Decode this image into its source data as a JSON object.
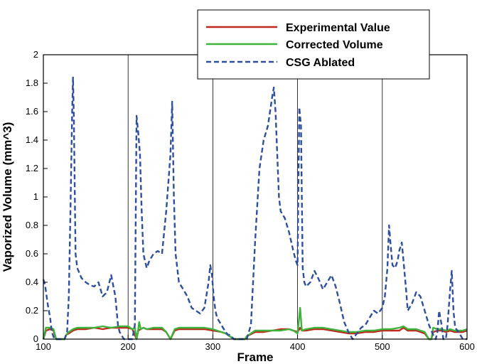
{
  "chart_data": {
    "type": "line",
    "title": "",
    "xlabel": "Frame",
    "ylabel": "Vaporized Volume (mm^3)",
    "xlim": [
      100,
      600
    ],
    "ylim": [
      0,
      2
    ],
    "grid": true,
    "legend_position": "top-right",
    "x_ticks": [
      100,
      200,
      300,
      400,
      500,
      600
    ],
    "y_ticks": [
      0,
      0.2,
      0.4,
      0.6,
      0.8,
      1,
      1.2,
      1.4,
      1.6,
      1.8,
      2
    ],
    "series": [
      {
        "name": "Experimental Value",
        "color": "#c0281e",
        "dash": "solid",
        "x": [
          100,
          103,
          108,
          112,
          115,
          120,
          125,
          127,
          130,
          135,
          140,
          150,
          160,
          170,
          180,
          190,
          200,
          205,
          210,
          212,
          215,
          218,
          222,
          230,
          240,
          245,
          250,
          255,
          260,
          270,
          280,
          290,
          300,
          310,
          315,
          320,
          325,
          330,
          335,
          338,
          340,
          350,
          360,
          370,
          380,
          390,
          395,
          400,
          403,
          405,
          410,
          420,
          430,
          440,
          450,
          460,
          470,
          480,
          490,
          500,
          510,
          520,
          525,
          530,
          540,
          550,
          555,
          558,
          560,
          565,
          570,
          575,
          580,
          585,
          590,
          595,
          600
        ],
        "values": [
          0.0,
          0.06,
          0.07,
          0.06,
          0.0,
          0.0,
          0.0,
          0.03,
          0.04,
          0.06,
          0.07,
          0.07,
          0.08,
          0.07,
          0.08,
          0.08,
          0.08,
          0.07,
          0.0,
          0.06,
          0.07,
          0.08,
          0.07,
          0.07,
          0.07,
          0.05,
          0.0,
          0.06,
          0.07,
          0.07,
          0.07,
          0.07,
          0.06,
          0.05,
          0.04,
          0.02,
          0.0,
          0.0,
          0.0,
          0.0,
          0.02,
          0.05,
          0.05,
          0.06,
          0.07,
          0.07,
          0.06,
          0.05,
          0.08,
          0.06,
          0.06,
          0.07,
          0.07,
          0.06,
          0.05,
          0.04,
          0.04,
          0.05,
          0.05,
          0.06,
          0.06,
          0.06,
          0.08,
          0.06,
          0.06,
          0.04,
          0.0,
          0.0,
          0.05,
          0.06,
          0.06,
          0.05,
          0.06,
          0.05,
          0.05,
          0.05,
          0.06
        ]
      },
      {
        "name": "Corrected Volume",
        "color": "#3cb43c",
        "dash": "solid",
        "x": [
          100,
          103,
          108,
          112,
          115,
          120,
          125,
          127,
          130,
          135,
          140,
          150,
          160,
          170,
          180,
          190,
          200,
          205,
          208,
          210,
          212,
          213,
          215,
          218,
          222,
          230,
          240,
          245,
          250,
          255,
          260,
          270,
          280,
          290,
          300,
          310,
          315,
          320,
          325,
          330,
          335,
          338,
          340,
          350,
          360,
          370,
          380,
          390,
          395,
          400,
          403,
          405,
          410,
          420,
          430,
          440,
          450,
          460,
          470,
          480,
          490,
          500,
          510,
          520,
          525,
          530,
          540,
          550,
          555,
          558,
          560,
          565,
          570,
          575,
          580,
          585,
          590,
          595,
          600
        ],
        "values": [
          0.0,
          0.08,
          0.08,
          0.07,
          0.0,
          0.0,
          0.0,
          0.03,
          0.05,
          0.07,
          0.08,
          0.08,
          0.08,
          0.09,
          0.08,
          0.09,
          0.09,
          0.07,
          0.08,
          0.0,
          0.07,
          0.12,
          0.07,
          0.08,
          0.07,
          0.08,
          0.08,
          0.05,
          0.0,
          0.07,
          0.08,
          0.08,
          0.08,
          0.08,
          0.07,
          0.05,
          0.04,
          0.02,
          0.0,
          0.0,
          0.0,
          0.0,
          0.02,
          0.06,
          0.06,
          0.06,
          0.06,
          0.07,
          0.06,
          0.04,
          0.22,
          0.06,
          0.07,
          0.08,
          0.08,
          0.07,
          0.06,
          0.05,
          0.05,
          0.06,
          0.06,
          0.07,
          0.07,
          0.08,
          0.09,
          0.07,
          0.07,
          0.05,
          0.0,
          0.0,
          0.08,
          0.07,
          0.07,
          0.06,
          0.07,
          0.06,
          0.06,
          0.06,
          0.07
        ]
      },
      {
        "name": "CSG Ablated",
        "color": "#2e4fa0",
        "dash": "dashed",
        "x": [
          100,
          102,
          105,
          108,
          110,
          113,
          115,
          120,
          125,
          128,
          130,
          132,
          134,
          135,
          136,
          138,
          140,
          145,
          150,
          155,
          160,
          165,
          170,
          175,
          180,
          185,
          188,
          190,
          195,
          200,
          205,
          208,
          210,
          212,
          214,
          216,
          218,
          220,
          222,
          225,
          230,
          235,
          240,
          245,
          250,
          252,
          254,
          256,
          260,
          265,
          270,
          275,
          280,
          285,
          290,
          295,
          297,
          299,
          301,
          303,
          305,
          310,
          315,
          318,
          320,
          325,
          330,
          335,
          340,
          345,
          350,
          355,
          360,
          365,
          370,
          372,
          374,
          376,
          378,
          380,
          385,
          390,
          395,
          398,
          400,
          402,
          404,
          406,
          408,
          410,
          415,
          420,
          425,
          430,
          435,
          440,
          445,
          450,
          455,
          460,
          465,
          470,
          475,
          480,
          485,
          490,
          495,
          500,
          503,
          506,
          508,
          510,
          512,
          515,
          518,
          520,
          523,
          525,
          528,
          530,
          535,
          540,
          545,
          550,
          555,
          560,
          563,
          565,
          567,
          570,
          572,
          575,
          577,
          580,
          582,
          584,
          586,
          590,
          595,
          600
        ],
        "values": [
          0.42,
          0.38,
          0.25,
          0.15,
          0.05,
          0.0,
          0.0,
          0.0,
          0.0,
          0.05,
          0.3,
          0.9,
          1.6,
          1.84,
          1.55,
          0.6,
          0.5,
          0.43,
          0.4,
          0.38,
          0.37,
          0.4,
          0.3,
          0.33,
          0.45,
          0.3,
          0.1,
          0.05,
          0.0,
          0.0,
          0.0,
          0.1,
          1.57,
          1.45,
          1.3,
          0.9,
          0.6,
          0.55,
          0.5,
          0.55,
          0.6,
          0.62,
          0.6,
          0.9,
          1.3,
          1.67,
          1.0,
          0.6,
          0.4,
          0.35,
          0.3,
          0.22,
          0.2,
          0.18,
          0.22,
          0.4,
          0.52,
          0.45,
          0.3,
          0.2,
          0.15,
          0.1,
          0.05,
          0.03,
          0.03,
          0.0,
          0.0,
          0.0,
          0.0,
          0.1,
          0.7,
          1.2,
          1.4,
          1.5,
          1.7,
          1.77,
          1.6,
          1.3,
          1.0,
          0.9,
          0.85,
          0.75,
          0.62,
          0.55,
          0.52,
          1.63,
          1.5,
          0.5,
          0.4,
          0.37,
          0.4,
          0.48,
          0.42,
          0.35,
          0.4,
          0.45,
          0.37,
          0.25,
          0.12,
          0.05,
          0.0,
          0.04,
          0.08,
          0.1,
          0.15,
          0.2,
          0.18,
          0.22,
          0.3,
          0.5,
          0.8,
          0.65,
          0.52,
          0.5,
          0.55,
          0.62,
          0.68,
          0.55,
          0.35,
          0.2,
          0.25,
          0.33,
          0.3,
          0.2,
          0.1,
          0.03,
          0.0,
          0.05,
          0.2,
          0.1,
          0.0,
          0.0,
          0.1,
          0.35,
          0.48,
          0.2,
          0.08,
          0.05,
          0.0,
          0.0
        ]
      }
    ]
  }
}
